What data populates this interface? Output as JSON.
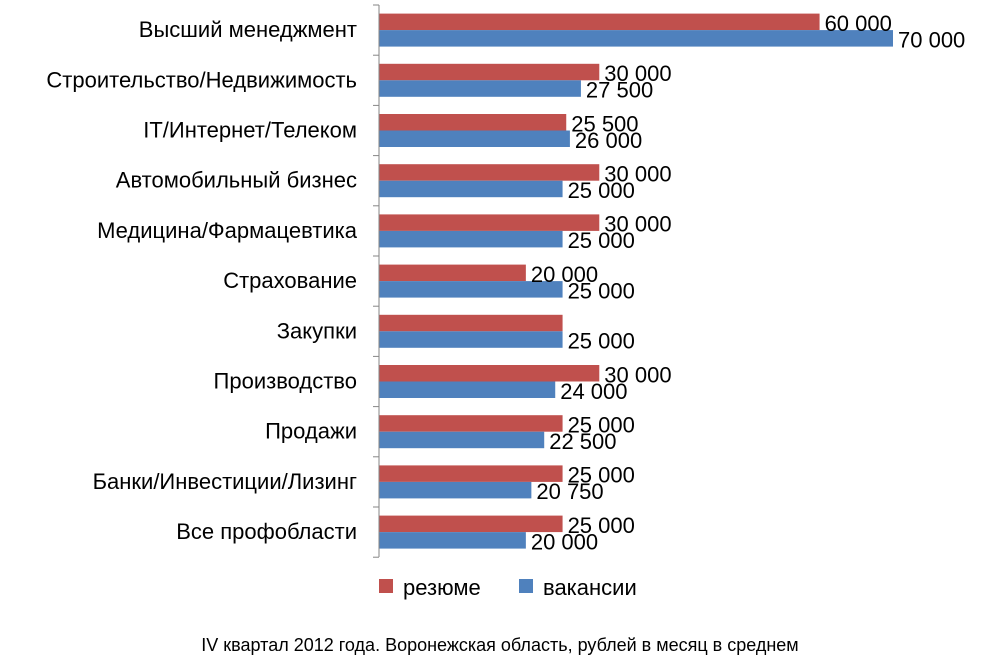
{
  "chart_data": {
    "type": "bar",
    "orientation": "horizontal",
    "categories": [
      "Высший менеджмент",
      "Строительство/Недвижимость",
      "IT/Интернет/Телеком",
      "Автомобильный бизнес",
      "Медицина/Фармацевтика",
      "Страхование",
      "Закупки",
      "Производство",
      "Продажи",
      "Банки/Инвестиции/Лизинг",
      "Все профобласти"
    ],
    "series": [
      {
        "name": "резюме",
        "color": "#C0504D",
        "values": [
          60000,
          30000,
          25500,
          30000,
          30000,
          20000,
          25000,
          30000,
          25000,
          25000,
          25000
        ],
        "labels": [
          "60 000",
          "30 000",
          "25 500",
          "30 000",
          "30 000",
          "20 000",
          "",
          "30 000",
          "25 000",
          "25 000",
          "25 000"
        ]
      },
      {
        "name": "вакансии",
        "color": "#4F81BD",
        "values": [
          70000,
          27500,
          26000,
          25000,
          25000,
          25000,
          25000,
          24000,
          22500,
          20750,
          20000
        ],
        "labels": [
          "70 000",
          "27 500",
          "26 000",
          "25 000",
          "25 000",
          "25 000",
          "25 000",
          "24 000",
          "22 500",
          "20 750",
          "20 000"
        ]
      }
    ],
    "xlim": [
      0,
      70000
    ],
    "grid": false,
    "legend_position": "bottom",
    "caption": "IV квартал 2012 года. Воронежская область, рублей в месяц в среднем"
  }
}
